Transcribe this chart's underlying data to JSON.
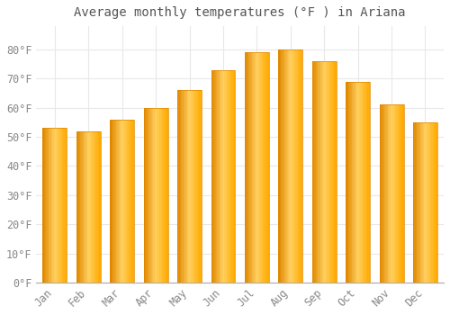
{
  "title": "Average monthly temperatures (°F ) in Ariana",
  "months": [
    "Jan",
    "Feb",
    "Mar",
    "Apr",
    "May",
    "Jun",
    "Jul",
    "Aug",
    "Sep",
    "Oct",
    "Nov",
    "Dec"
  ],
  "values": [
    53,
    52,
    56,
    60,
    66,
    73,
    79,
    80,
    76,
    69,
    61,
    55
  ],
  "bar_color_main": "#FFAA00",
  "bar_color_light": "#FFD060",
  "bar_color_dark": "#E08800",
  "background_color": "#FFFFFF",
  "plot_bg_color": "#FFFFFF",
  "grid_color": "#E8E8E8",
  "text_color": "#888888",
  "title_color": "#555555",
  "ylim": [
    0,
    88
  ],
  "yticks": [
    0,
    10,
    20,
    30,
    40,
    50,
    60,
    70,
    80
  ],
  "title_fontsize": 10,
  "tick_fontsize": 8.5,
  "bar_width": 0.72
}
